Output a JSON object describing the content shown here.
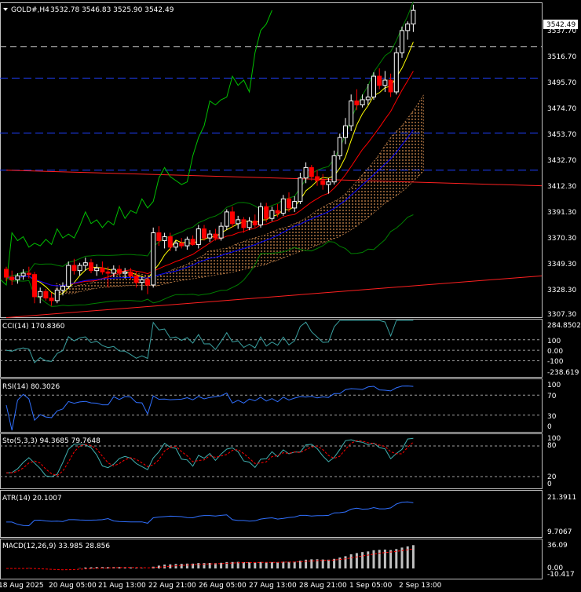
{
  "header": {
    "menu_icon": "triangle-down-icon",
    "symbol": "GOLD#,H4",
    "ohlc": "3532.78 3546.83 3525.90 3542.49"
  },
  "price_axis": {
    "current_price": "3542.49",
    "ticks": [
      "3537.70",
      "3516.70",
      "3495.70",
      "3474.70",
      "3453.70",
      "3432.70",
      "3412.30",
      "3391.30",
      "3370.30",
      "3349.30",
      "3328.30",
      "3307.30"
    ]
  },
  "indicators": {
    "cci": {
      "label": "CCI(14) 170.8360",
      "ticks": [
        "284.8502",
        "100",
        "0.00",
        "-100",
        "-238.619"
      ]
    },
    "rsi": {
      "label": "RSI(14) 80.3026",
      "ticks": [
        "100",
        "70",
        "30",
        "0"
      ]
    },
    "stoch": {
      "label": "Sto(5,3,3) 94.3685 79.7648",
      "ticks": [
        "100",
        "80",
        "20",
        "0"
      ]
    },
    "atr": {
      "label": "ATR(14) 20.1007",
      "ticks": [
        "21.3911",
        "9.7067"
      ]
    },
    "macd": {
      "label": "MACD(12,26,9) 33.985 28.856",
      "ticks": [
        "36.09",
        "0.00",
        "-10.417"
      ]
    }
  },
  "time_axis": {
    "labels": [
      "18 Aug 2025",
      "20 Aug 05:00",
      "21 Aug 13:00",
      "22 Aug 21:00",
      "26 Aug 05:00",
      "27 Aug 13:00",
      "28 Aug 21:00",
      "1 Sep 05:00",
      "2 Sep 13:00"
    ]
  },
  "colors": {
    "background": "#000000",
    "grid": "#c0c0c0",
    "bull": "#ffffff",
    "bear": "#ff0000",
    "ma_fast": "#ffff00",
    "ma_mid": "#ff0000",
    "ma_slow": "#0000ff",
    "chikou": "#00c000",
    "bollinger": "#008000",
    "cloud": "#ffaa60",
    "cci": "#3aa0a0",
    "rsi": "#3070ff",
    "stoch_main": "#40b0b0",
    "stoch_signal": "#ff0000",
    "atr": "#3070ff",
    "macd_hist": "#c0c0c0",
    "macd_signal": "#ff0000"
  },
  "chart_data": {
    "type": "candlestick",
    "y_range": [
      3307.3,
      3548
    ],
    "levels_dashed_white": [
      3514.5
    ],
    "levels_dashed_blue": [
      3490.5,
      3448.5,
      3420.0
    ],
    "trend_lines": [
      {
        "from": [
          0,
          3420
        ],
        "to": [
          147,
          3408
        ]
      },
      {
        "from": [
          0,
          3307
        ],
        "to": [
          147,
          3339
        ]
      }
    ],
    "candles": [
      [
        3344,
        3346,
        3335,
        3338
      ],
      [
        3338,
        3343,
        3332,
        3336
      ],
      [
        3336,
        3341,
        3333,
        3339
      ],
      [
        3339,
        3344,
        3336,
        3341
      ],
      [
        3341,
        3346,
        3337,
        3340
      ],
      [
        3340,
        3342,
        3318,
        3323
      ],
      [
        3323,
        3330,
        3318,
        3327
      ],
      [
        3327,
        3329,
        3320,
        3322
      ],
      [
        3322,
        3326,
        3316,
        3320
      ],
      [
        3320,
        3330,
        3318,
        3328
      ],
      [
        3328,
        3334,
        3324,
        3331
      ],
      [
        3331,
        3350,
        3329,
        3347
      ],
      [
        3347,
        3352,
        3340,
        3343
      ],
      [
        3343,
        3349,
        3339,
        3347
      ],
      [
        3347,
        3353,
        3343,
        3349
      ],
      [
        3349,
        3352,
        3341,
        3343
      ],
      [
        3343,
        3348,
        3339,
        3345
      ],
      [
        3345,
        3350,
        3340,
        3342
      ],
      [
        3342,
        3346,
        3330,
        3341
      ],
      [
        3341,
        3347,
        3338,
        3344
      ],
      [
        3344,
        3347,
        3339,
        3341
      ],
      [
        3341,
        3345,
        3337,
        3342
      ],
      [
        3342,
        3345,
        3336,
        3339
      ],
      [
        3339,
        3342,
        3330,
        3334
      ],
      [
        3334,
        3338,
        3328,
        3336
      ],
      [
        3336,
        3338,
        3325,
        3332
      ],
      [
        3332,
        3376,
        3330,
        3372
      ],
      [
        3372,
        3377,
        3362,
        3366
      ],
      [
        3366,
        3372,
        3360,
        3369
      ],
      [
        3369,
        3372,
        3358,
        3361
      ],
      [
        3361,
        3366,
        3358,
        3364
      ],
      [
        3364,
        3368,
        3360,
        3362
      ],
      [
        3362,
        3369,
        3359,
        3367
      ],
      [
        3367,
        3370,
        3362,
        3363
      ],
      [
        3363,
        3378,
        3360,
        3375
      ],
      [
        3375,
        3378,
        3366,
        3368
      ],
      [
        3368,
        3374,
        3365,
        3371
      ],
      [
        3371,
        3375,
        3366,
        3368
      ],
      [
        3368,
        3380,
        3366,
        3377
      ],
      [
        3377,
        3390,
        3374,
        3388
      ],
      [
        3388,
        3392,
        3376,
        3379
      ],
      [
        3379,
        3385,
        3375,
        3382
      ],
      [
        3382,
        3384,
        3372,
        3376
      ],
      [
        3376,
        3384,
        3374,
        3381
      ],
      [
        3381,
        3386,
        3376,
        3378
      ],
      [
        3378,
        3395,
        3376,
        3392
      ],
      [
        3392,
        3395,
        3380,
        3383
      ],
      [
        3383,
        3392,
        3381,
        3389
      ],
      [
        3389,
        3394,
        3384,
        3387
      ],
      [
        3387,
        3401,
        3385,
        3398
      ],
      [
        3398,
        3403,
        3388,
        3391
      ],
      [
        3391,
        3400,
        3388,
        3396
      ],
      [
        3396,
        3418,
        3394,
        3414
      ],
      [
        3414,
        3426,
        3410,
        3422
      ],
      [
        3422,
        3424,
        3412,
        3415
      ],
      [
        3415,
        3420,
        3408,
        3412
      ],
      [
        3412,
        3417,
        3405,
        3409
      ],
      [
        3409,
        3414,
        3402,
        3411
      ],
      [
        3411,
        3435,
        3409,
        3431
      ],
      [
        3431,
        3448,
        3428,
        3445
      ],
      [
        3445,
        3460,
        3440,
        3454
      ],
      [
        3454,
        3478,
        3450,
        3473
      ],
      [
        3473,
        3482,
        3466,
        3470
      ],
      [
        3470,
        3478,
        3468,
        3474
      ],
      [
        3474,
        3486,
        3470,
        3476
      ],
      [
        3476,
        3495,
        3474,
        3492
      ],
      [
        3492,
        3498,
        3482,
        3485
      ],
      [
        3485,
        3496,
        3480,
        3489
      ],
      [
        3489,
        3494,
        3476,
        3480
      ],
      [
        3480,
        3514,
        3478,
        3510
      ],
      [
        3510,
        3530,
        3506,
        3527
      ],
      [
        3527,
        3534,
        3520,
        3532
      ],
      [
        3532,
        3546.83,
        3525.9,
        3542.49
      ]
    ]
  }
}
